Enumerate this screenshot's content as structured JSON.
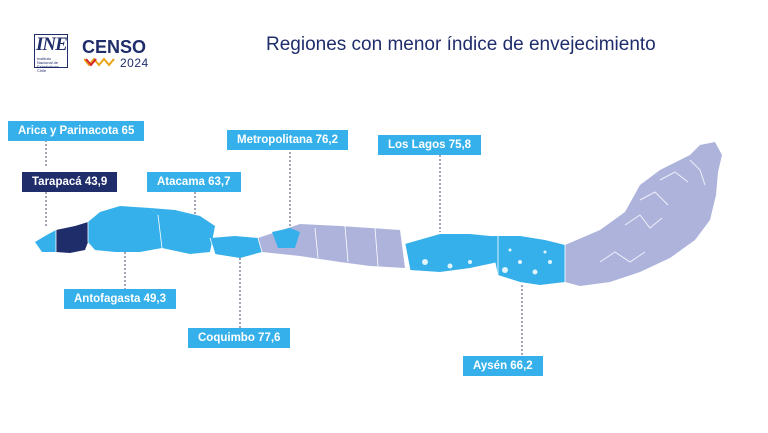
{
  "header": {
    "logo_ine": "INE",
    "logo_ine_sub": "Instituto Nacional de Estadísticas Chile",
    "logo_censo": "CENSO",
    "logo_censo_year": "2024",
    "title": "Regiones con menor índice de envejecimiento"
  },
  "colors": {
    "highlight_region": "#35b0ea",
    "lowest_region": "#1f2d6b",
    "other_region": "#aeb3dc",
    "label_light": "#35b0ea",
    "label_dark": "#1f2d6b"
  },
  "regions": [
    {
      "name": "Arica y Parinacota",
      "value": "65",
      "label": "Arica y Parinacota 65"
    },
    {
      "name": "Tarapacá",
      "value": "43,9",
      "label": "Tarapacá 43,9"
    },
    {
      "name": "Antofagasta",
      "value": "49,3",
      "label": "Antofagasta 49,3"
    },
    {
      "name": "Atacama",
      "value": "63,7",
      "label": "Atacama 63,7"
    },
    {
      "name": "Coquimbo",
      "value": "77,6",
      "label": "Coquimbo 77,6"
    },
    {
      "name": "Metropolitana",
      "value": "76,2",
      "label": "Metropolitana 76,2"
    },
    {
      "name": "Los Lagos",
      "value": "75,8",
      "label": "Los Lagos 75,8"
    },
    {
      "name": "Aysén",
      "value": "66,2",
      "label": "Aysén 66,2"
    }
  ]
}
